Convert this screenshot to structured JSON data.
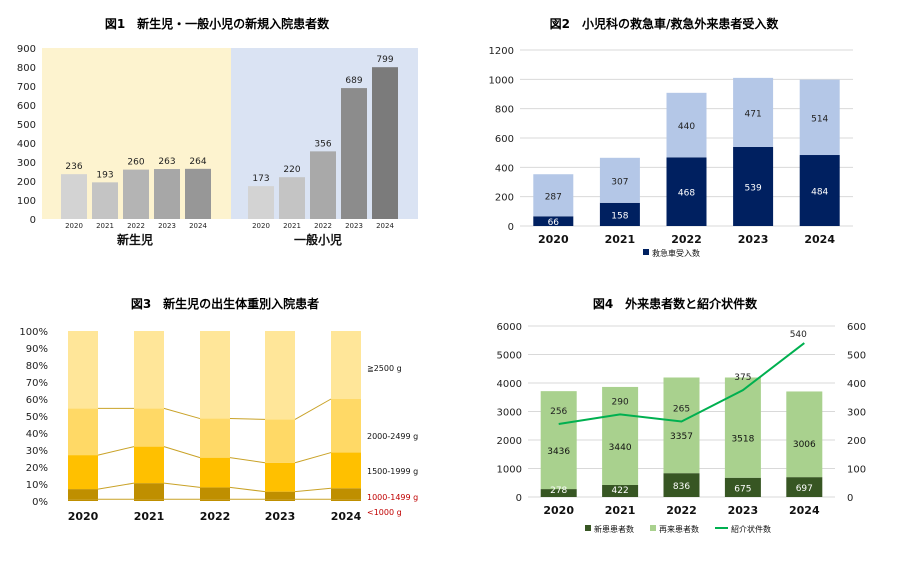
{
  "chart_data": [
    {
      "id": "fig1",
      "type": "bar",
      "title": "図1　新生児・一般小児の新規入院患者数",
      "ylim": [
        0,
        900
      ],
      "yticks": [
        0,
        100,
        200,
        300,
        400,
        500,
        600,
        700,
        800,
        900
      ],
      "groups": [
        {
          "name": "新生児",
          "background": "#fdf3cf",
          "categories": [
            "2020",
            "2021",
            "2022",
            "2023",
            "2024"
          ],
          "values": [
            236,
            193,
            260,
            263,
            264
          ],
          "colors": [
            "#d3d3d3",
            "#c4c4c4",
            "#b4b4b4",
            "#a7a7a7",
            "#979797"
          ]
        },
        {
          "name": "一般小児",
          "background": "#dae3f3",
          "categories": [
            "2020",
            "2021",
            "2022",
            "2023",
            "2024"
          ],
          "values": [
            173,
            220,
            356,
            689,
            799
          ],
          "colors": [
            "#d3d3d3",
            "#c4c4c4",
            "#a9a9a9",
            "#8c8c8c",
            "#7b7b7b"
          ]
        }
      ],
      "grid": false,
      "legend": "none"
    },
    {
      "id": "fig2",
      "type": "bar",
      "stacked": true,
      "title": "図2　小児科の救急車/救急外来患者受入数",
      "categories": [
        "2020",
        "2021",
        "2022",
        "2023",
        "2024"
      ],
      "series": [
        {
          "name": "救急車受入数",
          "values": [
            66,
            158,
            468,
            539,
            484
          ],
          "color": "#002060",
          "label_color": "#ffffff"
        },
        {
          "values": [
            287,
            307,
            440,
            471,
            514
          ],
          "color": "#b4c7e7",
          "label_color": "#222222"
        }
      ],
      "ylim": [
        0,
        1200
      ],
      "yticks": [
        0,
        200,
        400,
        600,
        800,
        1000,
        1200
      ],
      "grid": true,
      "legend": "bottom"
    },
    {
      "id": "fig3",
      "type": "bar",
      "stacked": true,
      "percent": true,
      "title": "図3　新生児の出生体重別入院患者",
      "categories": [
        "2020",
        "2021",
        "2022",
        "2023",
        "2024"
      ],
      "series": [
        {
          "name": "<1000 g",
          "values": [
            1,
            1,
            1,
            1,
            1
          ],
          "color": "#bf8f00",
          "label_color": "#c00000"
        },
        {
          "name": "1000-1499 g",
          "values": [
            6,
            9.5,
            7,
            4.5,
            6.5
          ],
          "color": "#bf8f00",
          "label_color": "#c00000"
        },
        {
          "name": "1500-1999 g",
          "values": [
            20,
            21.5,
            17.5,
            17,
            21
          ],
          "color": "#ffc000",
          "label_color": "#111111"
        },
        {
          "name": "2000-2499 g",
          "values": [
            27.5,
            22.5,
            23,
            25.5,
            31.5
          ],
          "color": "#ffd966",
          "label_color": "#111111"
        },
        {
          "name": "≧2500 g",
          "values": [
            45.5,
            45.5,
            51.5,
            52,
            40
          ],
          "color": "#ffe699",
          "label_color": "#111111"
        }
      ],
      "ylim": [
        0,
        100
      ],
      "yticks": [
        "0%",
        "10%",
        "20%",
        "30%",
        "40%",
        "50%",
        "60%",
        "70%",
        "80%",
        "90%",
        "100%"
      ],
      "grid": false,
      "legend": "right"
    },
    {
      "id": "fig4",
      "type": "bar",
      "stacked": true,
      "title": "図4　外来患者数と紹介状件数",
      "categories": [
        "2020",
        "2021",
        "2022",
        "2023",
        "2024"
      ],
      "series": [
        {
          "name": "新患患者数",
          "values": [
            278,
            422,
            836,
            675,
            697
          ],
          "color": "#375623",
          "label_color": "#ffffff"
        },
        {
          "name": "再来患者数",
          "values": [
            3436,
            3440,
            3357,
            3518,
            3006
          ],
          "color": "#a9d18e",
          "label_color": "#111111"
        },
        {
          "name": "紹介状件数",
          "type": "line",
          "axis": "right",
          "values": [
            256,
            290,
            265,
            375,
            540
          ],
          "color": "#00b050"
        }
      ],
      "ylim": [
        0,
        6000
      ],
      "yticks": [
        0,
        1000,
        2000,
        3000,
        4000,
        5000,
        6000
      ],
      "y2lim": [
        0,
        600
      ],
      "y2ticks": [
        0,
        100,
        200,
        300,
        400,
        500,
        600
      ],
      "grid": true,
      "legend": "bottom"
    }
  ]
}
